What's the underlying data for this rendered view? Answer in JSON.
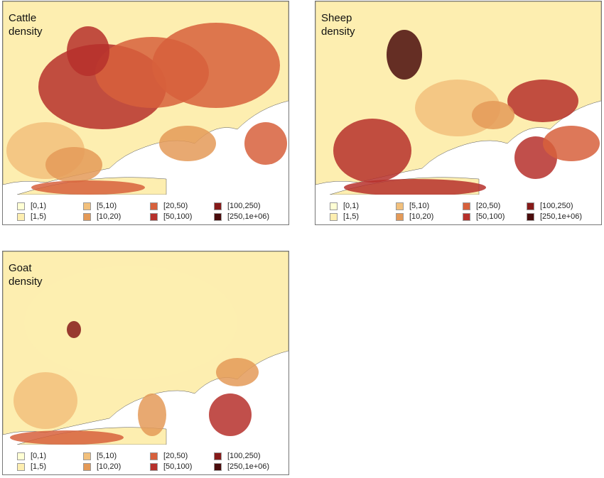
{
  "panels": [
    {
      "title": "Cattle density",
      "legend": [
        {
          "label": "[0,1)",
          "color": "#ffffd4"
        },
        {
          "label": "[1,5)",
          "color": "#fdeeb0"
        },
        {
          "label": "[5,10)",
          "color": "#f2c07c"
        },
        {
          "label": "[10,20)",
          "color": "#e49a58"
        },
        {
          "label": "[20,50)",
          "color": "#d7603c"
        },
        {
          "label": "[50,100)",
          "color": "#b6302b"
        },
        {
          "label": "[100,250)",
          "color": "#861a19"
        },
        {
          "label": "[250,1e+06)",
          "color": "#4a0c0c"
        }
      ]
    },
    {
      "title": "Sheep density",
      "legend": [
        {
          "label": "[0,1)",
          "color": "#ffffd4"
        },
        {
          "label": "[1,5)",
          "color": "#fdeeb0"
        },
        {
          "label": "[5,10)",
          "color": "#f2c07c"
        },
        {
          "label": "[10,20)",
          "color": "#e49a58"
        },
        {
          "label": "[20,50)",
          "color": "#d7603c"
        },
        {
          "label": "[50,100)",
          "color": "#b6302b"
        },
        {
          "label": "[100,250)",
          "color": "#861a19"
        },
        {
          "label": "[250,1e+06)",
          "color": "#4a0c0c"
        }
      ]
    },
    {
      "title": "Goat density",
      "legend": [
        {
          "label": "[0,1)",
          "color": "#ffffd4"
        },
        {
          "label": "[1,5)",
          "color": "#fdeeb0"
        },
        {
          "label": "[5,10)",
          "color": "#f2c07c"
        },
        {
          "label": "[10,20)",
          "color": "#e49a58"
        },
        {
          "label": "[20,50)",
          "color": "#d7603c"
        },
        {
          "label": "[50,100)",
          "color": "#b6302b"
        },
        {
          "label": "[100,250)",
          "color": "#861a19"
        },
        {
          "label": "[250,1e+06)",
          "color": "#4a0c0c"
        }
      ]
    }
  ]
}
